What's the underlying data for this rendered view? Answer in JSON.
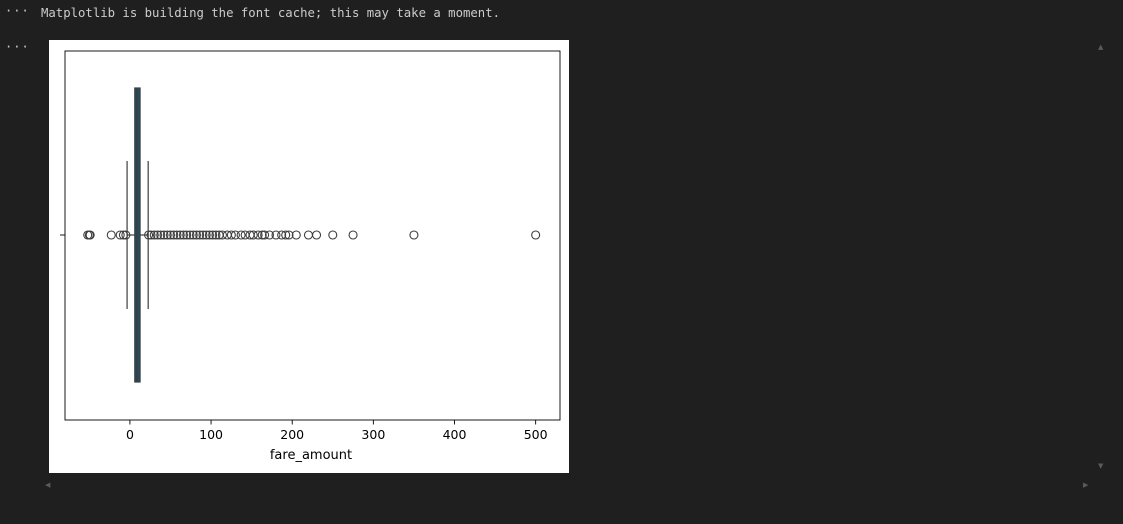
{
  "output": {
    "ellipsis": "···",
    "stdout_text": "Matplotlib is building the font cache; this may take a moment."
  },
  "colors": {
    "background": "#1f1f1f",
    "text": "#cccccc",
    "plot_background": "#ffffff",
    "box_fill": "#1f4e62"
  },
  "icons": {
    "scroll_up": "triangle-up",
    "scroll_down": "triangle-down",
    "scroll_left": "triangle-left",
    "scroll_right": "triangle-right"
  },
  "chart_data": {
    "type": "box",
    "orientation": "horizontal",
    "xlabel": "fare_amount",
    "ylabel": "",
    "title": "",
    "xlim": [
      -80,
      530
    ],
    "xticks": [
      0,
      100,
      200,
      300,
      400,
      500
    ],
    "xtick_labels": [
      "0",
      "100",
      "200",
      "300",
      "400",
      "500"
    ],
    "box": {
      "whisker_low": -3.5,
      "q1": 6,
      "median": 8.5,
      "q3": 12.5,
      "whisker_high": 22.5
    },
    "outliers": [
      -52,
      -50,
      -49,
      -23,
      -12,
      -8,
      -5,
      23,
      26,
      30,
      34,
      38,
      42,
      46,
      50,
      54,
      58,
      62,
      66,
      70,
      74,
      78,
      82,
      86,
      90,
      94,
      98,
      102,
      106,
      110,
      114,
      120,
      125,
      130,
      137,
      142,
      148,
      152,
      158,
      163,
      166,
      172,
      180,
      187,
      192,
      196,
      205,
      220,
      230,
      250,
      275,
      350,
      500
    ]
  }
}
